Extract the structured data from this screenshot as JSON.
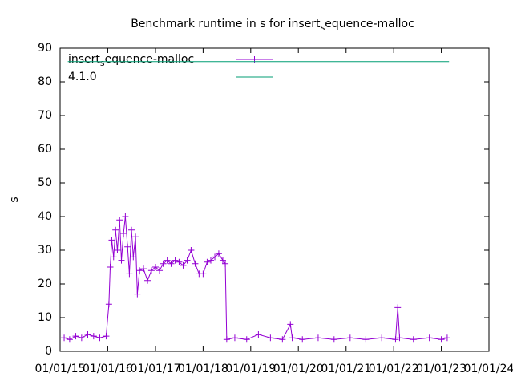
{
  "chart_data": {
    "type": "line",
    "title": "Benchmark runtime in s for insert_sequence-malloc",
    "y_label": "s",
    "xlim": [
      "2015-01-01",
      "2024-01-01"
    ],
    "xticks": [
      {
        "value": "2015-01-01",
        "label": "01/01/15"
      },
      {
        "value": "2016-01-01",
        "label": "01/01/16"
      },
      {
        "value": "2017-01-01",
        "label": "01/01/17"
      },
      {
        "value": "2018-01-01",
        "label": "01/01/18"
      },
      {
        "value": "2019-01-01",
        "label": "01/01/19"
      },
      {
        "value": "2020-01-01",
        "label": "01/01/20"
      },
      {
        "value": "2021-01-01",
        "label": "01/01/21"
      },
      {
        "value": "2022-01-01",
        "label": "01/01/22"
      },
      {
        "value": "2023-01-01",
        "label": "01/01/23"
      },
      {
        "value": "2024-01-01",
        "label": "01/01/24"
      }
    ],
    "ylim": [
      0,
      90
    ],
    "yticks": [
      0,
      10,
      20,
      30,
      40,
      50,
      60,
      70,
      80,
      90
    ],
    "legend": "top-left",
    "series": [
      {
        "name": "insert_sequence-malloc",
        "color": "#9400d3",
        "markers": true,
        "x": [
          "2015-02-01",
          "2015-03-15",
          "2015-05-01",
          "2015-06-15",
          "2015-08-01",
          "2015-09-15",
          "2015-11-01",
          "2015-12-20",
          "2016-01-10",
          "2016-01-20",
          "2016-02-01",
          "2016-02-15",
          "2016-03-01",
          "2016-03-15",
          "2016-04-01",
          "2016-04-15",
          "2016-05-01",
          "2016-05-15",
          "2016-06-01",
          "2016-06-15",
          "2016-07-01",
          "2016-07-15",
          "2016-08-01",
          "2016-08-15",
          "2016-09-01",
          "2016-10-01",
          "2016-11-01",
          "2016-12-01",
          "2017-01-01",
          "2017-02-01",
          "2017-03-01",
          "2017-04-01",
          "2017-05-01",
          "2017-06-01",
          "2017-07-01",
          "2017-08-01",
          "2017-09-01",
          "2017-10-01",
          "2017-11-01",
          "2017-12-01",
          "2018-01-01",
          "2018-02-01",
          "2018-03-01",
          "2018-04-01",
          "2018-05-01",
          "2018-06-01",
          "2018-06-20",
          "2018-07-01",
          "2018-09-01",
          "2018-12-01",
          "2019-03-01",
          "2019-06-01",
          "2019-09-01",
          "2019-11-01",
          "2019-11-15",
          "2020-02-01",
          "2020-06-01",
          "2020-10-01",
          "2021-02-01",
          "2021-06-01",
          "2021-10-01",
          "2022-01-15",
          "2022-02-01",
          "2022-02-15",
          "2022-06-01",
          "2022-10-01",
          "2023-01-01",
          "2023-02-15"
        ],
        "values": [
          4,
          3.5,
          4.5,
          4,
          5,
          4.5,
          4,
          4.5,
          14,
          25,
          33,
          28,
          36,
          30,
          39,
          27,
          35,
          40,
          31,
          23,
          36,
          28,
          34,
          17,
          24,
          24.5,
          21,
          24,
          25,
          24,
          26,
          27,
          26,
          27,
          26.5,
          25.5,
          27,
          30,
          26,
          23,
          23,
          26.5,
          27,
          28,
          29,
          27,
          26,
          3.5,
          4,
          3.5,
          5,
          4,
          3.5,
          8,
          4,
          3.5,
          4,
          3.5,
          4,
          3.5,
          4,
          3.5,
          13,
          4,
          3.5,
          4,
          3.5,
          4
        ]
      },
      {
        "name": "4.1.0",
        "color": "#009e73",
        "markers": false,
        "x": [
          "2015-03-01",
          "2023-03-01"
        ],
        "values": [
          86,
          86
        ]
      }
    ]
  }
}
